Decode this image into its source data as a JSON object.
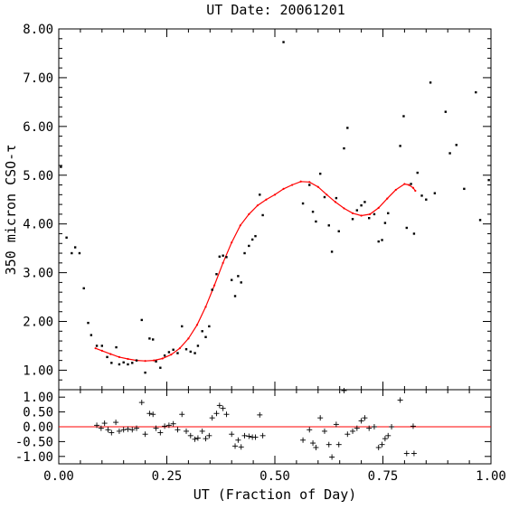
{
  "chart_data": {
    "type": "scatter",
    "title": "UT Date: 20061201",
    "xlabel": "UT (Fraction of Day)",
    "ylabel": "350 micron CSO-τ",
    "colors": {
      "fit": "#ff0000",
      "points": "#000000",
      "zero_line": "#ff0000"
    },
    "panels": [
      {
        "name": "main",
        "xlim": [
          0.0,
          1.0
        ],
        "ylim": [
          0.6,
          8.0
        ],
        "ytick_labels": [
          "1.00",
          "2.00",
          "3.00",
          "4.00",
          "5.00",
          "6.00",
          "7.00",
          "8.00"
        ],
        "series": [
          {
            "marker": "dot",
            "points": [
              [
                0.005,
                5.17
              ],
              [
                0.018,
                3.72
              ],
              [
                0.03,
                3.4
              ],
              [
                0.038,
                3.52
              ],
              [
                0.048,
                3.4
              ],
              [
                0.058,
                2.68
              ],
              [
                0.068,
                1.97
              ],
              [
                0.075,
                1.72
              ],
              [
                0.088,
                1.5
              ],
              [
                0.1,
                1.5
              ],
              [
                0.112,
                1.27
              ],
              [
                0.122,
                1.15
              ],
              [
                0.133,
                1.47
              ],
              [
                0.14,
                1.12
              ],
              [
                0.15,
                1.16
              ],
              [
                0.16,
                1.12
              ],
              [
                0.17,
                1.15
              ],
              [
                0.18,
                1.2
              ],
              [
                0.192,
                2.03
              ],
              [
                0.2,
                0.95
              ],
              [
                0.21,
                1.65
              ],
              [
                0.218,
                1.63
              ],
              [
                0.225,
                1.18
              ],
              [
                0.235,
                1.05
              ],
              [
                0.245,
                1.3
              ],
              [
                0.255,
                1.37
              ],
              [
                0.265,
                1.42
              ],
              [
                0.275,
                1.35
              ],
              [
                0.285,
                1.9
              ],
              [
                0.295,
                1.43
              ],
              [
                0.305,
                1.38
              ],
              [
                0.315,
                1.35
              ],
              [
                0.322,
                1.5
              ],
              [
                0.332,
                1.8
              ],
              [
                0.34,
                1.68
              ],
              [
                0.348,
                1.9
              ],
              [
                0.355,
                2.65
              ],
              [
                0.365,
                2.97
              ],
              [
                0.372,
                3.33
              ],
              [
                0.38,
                3.35
              ],
              [
                0.388,
                3.32
              ],
              [
                0.4,
                2.85
              ],
              [
                0.408,
                2.52
              ],
              [
                0.415,
                2.93
              ],
              [
                0.422,
                2.8
              ],
              [
                0.43,
                3.4
              ],
              [
                0.44,
                3.55
              ],
              [
                0.448,
                3.68
              ],
              [
                0.455,
                3.75
              ],
              [
                0.465,
                4.6
              ],
              [
                0.472,
                4.18
              ],
              [
                0.52,
                7.73
              ],
              [
                0.565,
                4.42
              ],
              [
                0.58,
                4.8
              ],
              [
                0.588,
                4.25
              ],
              [
                0.595,
                4.05
              ],
              [
                0.605,
                5.03
              ],
              [
                0.615,
                4.55
              ],
              [
                0.625,
                3.97
              ],
              [
                0.632,
                3.43
              ],
              [
                0.642,
                4.53
              ],
              [
                0.648,
                3.85
              ],
              [
                0.66,
                5.55
              ],
              [
                0.668,
                5.97
              ],
              [
                0.68,
                4.1
              ],
              [
                0.69,
                4.28
              ],
              [
                0.7,
                4.38
              ],
              [
                0.708,
                4.45
              ],
              [
                0.718,
                4.12
              ],
              [
                0.73,
                4.2
              ],
              [
                0.74,
                3.64
              ],
              [
                0.748,
                3.67
              ],
              [
                0.755,
                4.02
              ],
              [
                0.762,
                4.22
              ],
              [
                0.79,
                5.6
              ],
              [
                0.798,
                6.21
              ],
              [
                0.805,
                3.92
              ],
              [
                0.815,
                4.82
              ],
              [
                0.822,
                3.8
              ],
              [
                0.83,
                5.05
              ],
              [
                0.84,
                4.58
              ],
              [
                0.85,
                4.5
              ],
              [
                0.86,
                6.9
              ],
              [
                0.87,
                4.63
              ],
              [
                0.895,
                6.3
              ],
              [
                0.905,
                5.45
              ],
              [
                0.92,
                5.62
              ],
              [
                0.938,
                4.72
              ],
              [
                0.965,
                6.7
              ],
              [
                0.975,
                4.08
              ],
              [
                0.995,
                4.9
              ]
            ]
          },
          {
            "marker": "line",
            "points": [
              [
                0.085,
                1.45
              ],
              [
                0.1,
                1.4
              ],
              [
                0.12,
                1.33
              ],
              [
                0.14,
                1.27
              ],
              [
                0.16,
                1.23
              ],
              [
                0.18,
                1.2
              ],
              [
                0.2,
                1.19
              ],
              [
                0.22,
                1.2
              ],
              [
                0.24,
                1.24
              ],
              [
                0.26,
                1.32
              ],
              [
                0.28,
                1.45
              ],
              [
                0.3,
                1.65
              ],
              [
                0.32,
                1.93
              ],
              [
                0.34,
                2.3
              ],
              [
                0.36,
                2.74
              ],
              [
                0.38,
                3.2
              ],
              [
                0.4,
                3.62
              ],
              [
                0.42,
                3.97
              ],
              [
                0.44,
                4.2
              ],
              [
                0.46,
                4.38
              ],
              [
                0.48,
                4.5
              ],
              [
                0.5,
                4.6
              ],
              [
                0.52,
                4.72
              ],
              [
                0.54,
                4.8
              ],
              [
                0.56,
                4.87
              ],
              [
                0.58,
                4.86
              ],
              [
                0.6,
                4.76
              ],
              [
                0.62,
                4.6
              ],
              [
                0.64,
                4.45
              ],
              [
                0.66,
                4.32
              ],
              [
                0.68,
                4.22
              ],
              [
                0.7,
                4.17
              ],
              [
                0.72,
                4.2
              ],
              [
                0.74,
                4.33
              ],
              [
                0.76,
                4.52
              ],
              [
                0.78,
                4.7
              ],
              [
                0.8,
                4.82
              ],
              [
                0.81,
                4.8
              ],
              [
                0.82,
                4.74
              ],
              [
                0.825,
                4.68
              ]
            ]
          }
        ]
      },
      {
        "name": "residuals",
        "xlim": [
          0.0,
          1.0
        ],
        "ylim": [
          -1.25,
          1.25
        ],
        "zero_line": 0,
        "ytick_labels": [
          "1.00",
          "0.50",
          "0.00",
          "-0.50",
          "-1.00"
        ],
        "series": [
          {
            "marker": "plus",
            "points": [
              [
                0.088,
                0.05
              ],
              [
                0.098,
                -0.05
              ],
              [
                0.106,
                0.12
              ],
              [
                0.114,
                -0.1
              ],
              [
                0.122,
                -0.2
              ],
              [
                0.132,
                0.15
              ],
              [
                0.14,
                -0.15
              ],
              [
                0.15,
                -0.1
              ],
              [
                0.16,
                -0.08
              ],
              [
                0.17,
                -0.1
              ],
              [
                0.18,
                -0.05
              ],
              [
                0.192,
                0.82
              ],
              [
                0.2,
                -0.25
              ],
              [
                0.21,
                0.45
              ],
              [
                0.218,
                0.42
              ],
              [
                0.225,
                -0.05
              ],
              [
                0.235,
                -0.2
              ],
              [
                0.245,
                0.02
              ],
              [
                0.255,
                0.05
              ],
              [
                0.265,
                0.1
              ],
              [
                0.275,
                -0.1
              ],
              [
                0.285,
                0.42
              ],
              [
                0.295,
                -0.15
              ],
              [
                0.305,
                -0.3
              ],
              [
                0.315,
                -0.42
              ],
              [
                0.322,
                -0.38
              ],
              [
                0.332,
                -0.15
              ],
              [
                0.34,
                -0.4
              ],
              [
                0.348,
                -0.3
              ],
              [
                0.355,
                0.3
              ],
              [
                0.365,
                0.45
              ],
              [
                0.372,
                0.72
              ],
              [
                0.38,
                0.62
              ],
              [
                0.388,
                0.42
              ],
              [
                0.4,
                -0.25
              ],
              [
                0.408,
                -0.65
              ],
              [
                0.415,
                -0.45
              ],
              [
                0.422,
                -0.68
              ],
              [
                0.43,
                -0.3
              ],
              [
                0.44,
                -0.32
              ],
              [
                0.448,
                -0.35
              ],
              [
                0.455,
                -0.35
              ],
              [
                0.465,
                0.4
              ],
              [
                0.472,
                -0.3
              ],
              [
                0.565,
                -0.45
              ],
              [
                0.58,
                -0.1
              ],
              [
                0.588,
                -0.55
              ],
              [
                0.595,
                -0.7
              ],
              [
                0.605,
                0.3
              ],
              [
                0.615,
                -0.15
              ],
              [
                0.625,
                -0.6
              ],
              [
                0.632,
                -1.02
              ],
              [
                0.642,
                0.08
              ],
              [
                0.648,
                -0.6
              ],
              [
                0.66,
                1.25
              ],
              [
                0.668,
                -0.25
              ],
              [
                0.68,
                -0.15
              ],
              [
                0.69,
                -0.05
              ],
              [
                0.7,
                0.2
              ],
              [
                0.708,
                0.3
              ],
              [
                0.718,
                -0.05
              ],
              [
                0.73,
                0.0
              ],
              [
                0.74,
                -0.7
              ],
              [
                0.748,
                -0.6
              ],
              [
                0.755,
                -0.4
              ],
              [
                0.762,
                -0.3
              ],
              [
                0.77,
                0.0
              ],
              [
                0.79,
                0.9
              ],
              [
                0.805,
                -0.9
              ],
              [
                0.82,
                0.02
              ],
              [
                0.822,
                -0.9
              ]
            ]
          }
        ]
      }
    ],
    "xtick_labels": [
      "0.00",
      "0.25",
      "0.50",
      "0.75",
      "1.00"
    ]
  }
}
